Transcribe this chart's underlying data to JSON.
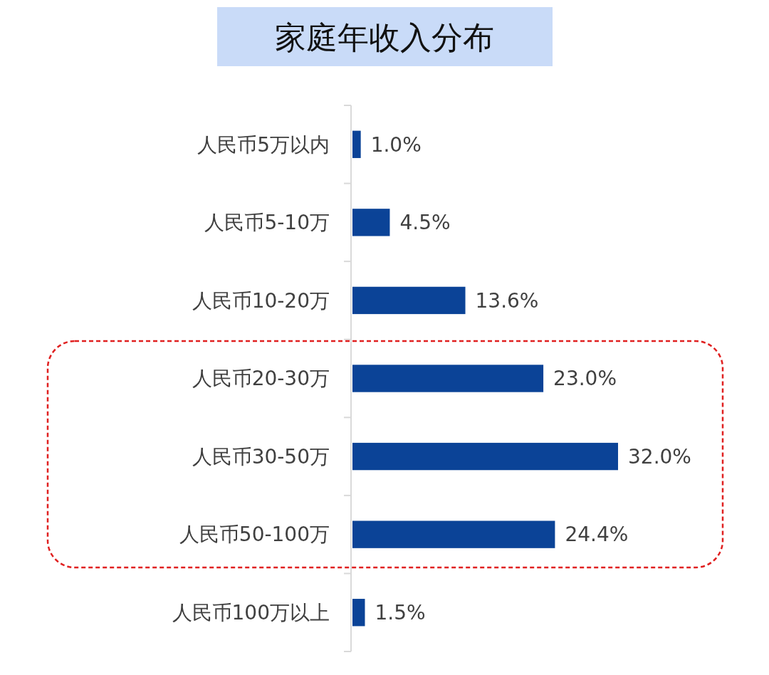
{
  "chart_data": {
    "type": "bar",
    "orientation": "horizontal",
    "title": "家庭年收入分布",
    "categories": [
      "人民币5万以内",
      "人民币5-10万",
      "人民币10-20万",
      "人民币20-30万",
      "人民币30-50万",
      "人民币50-100万",
      "人民币100万以上"
    ],
    "values": [
      1.0,
      4.5,
      13.6,
      23.0,
      32.0,
      24.4,
      1.5
    ],
    "value_labels": [
      "1.0%",
      "4.5%",
      "13.6%",
      "23.0%",
      "32.0%",
      "24.4%",
      "1.5%"
    ],
    "color": "#0b4397"
  }
}
